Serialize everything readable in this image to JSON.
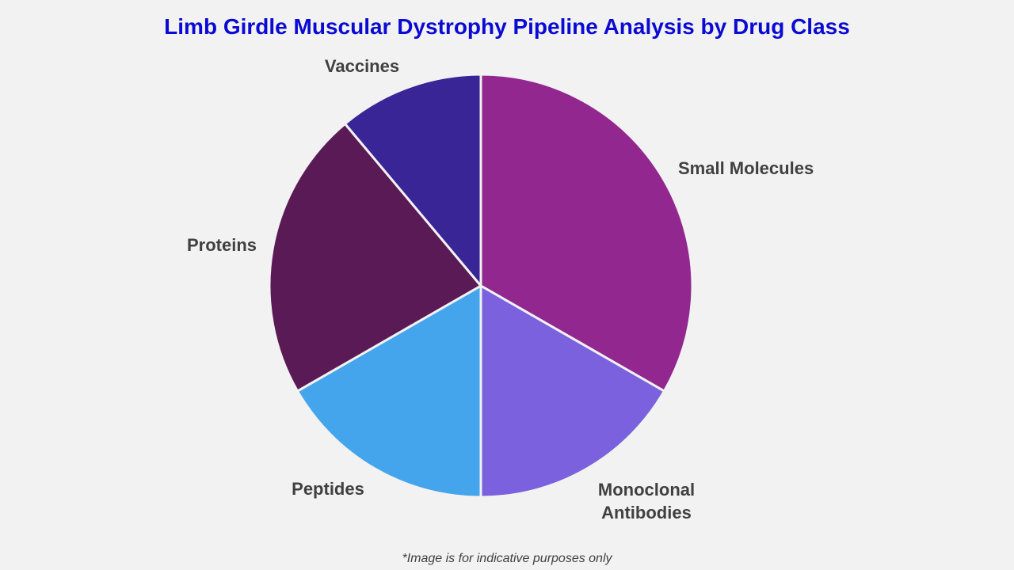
{
  "chart_data": {
    "type": "pie",
    "title": "Limb Girdle Muscular Dystrophy Pipeline Analysis by Drug Class",
    "categories": [
      "Small Molecules",
      "Monoclonal Antibodies",
      "Peptides",
      "Proteins",
      "Vaccines"
    ],
    "values": [
      33.3,
      16.7,
      16.7,
      22.2,
      11.1
    ],
    "unit": "%",
    "colors": [
      "#92278f",
      "#7b61dd",
      "#45a5ec",
      "#5a1a56",
      "#3a2596"
    ],
    "start_angle": "12 o'clock",
    "direction": "clockwise",
    "labels_outside": true,
    "legend": "none"
  },
  "footnote": "*Image is for indicative purposes only"
}
